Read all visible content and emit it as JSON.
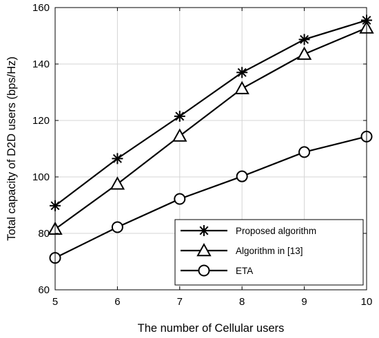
{
  "chart_data": {
    "type": "line",
    "xlabel": "The number of Cellular users",
    "ylabel": "Total capacity of D2D users (bps/Hz)",
    "xlim": [
      5,
      10
    ],
    "ylim": [
      60,
      160
    ],
    "xticks": [
      5,
      6,
      7,
      8,
      9,
      10
    ],
    "yticks": [
      60,
      80,
      100,
      120,
      140,
      160
    ],
    "grid": true,
    "legend_position": "bottom-right",
    "line_color": "#000000",
    "x": [
      5,
      6,
      7,
      8,
      9,
      10
    ],
    "series": [
      {
        "name": "Proposed algorithm",
        "marker": "asterisk",
        "values": [
          89.8,
          106.5,
          121.5,
          137.0,
          148.7,
          155.5
        ]
      },
      {
        "name": "Algorithm in [13]",
        "marker": "triangle",
        "values": [
          81.5,
          97.5,
          114.5,
          131.3,
          143.5,
          152.8
        ]
      },
      {
        "name": "ETA",
        "marker": "circle",
        "values": [
          71.3,
          82.2,
          92.2,
          100.2,
          108.8,
          114.3
        ]
      }
    ]
  }
}
